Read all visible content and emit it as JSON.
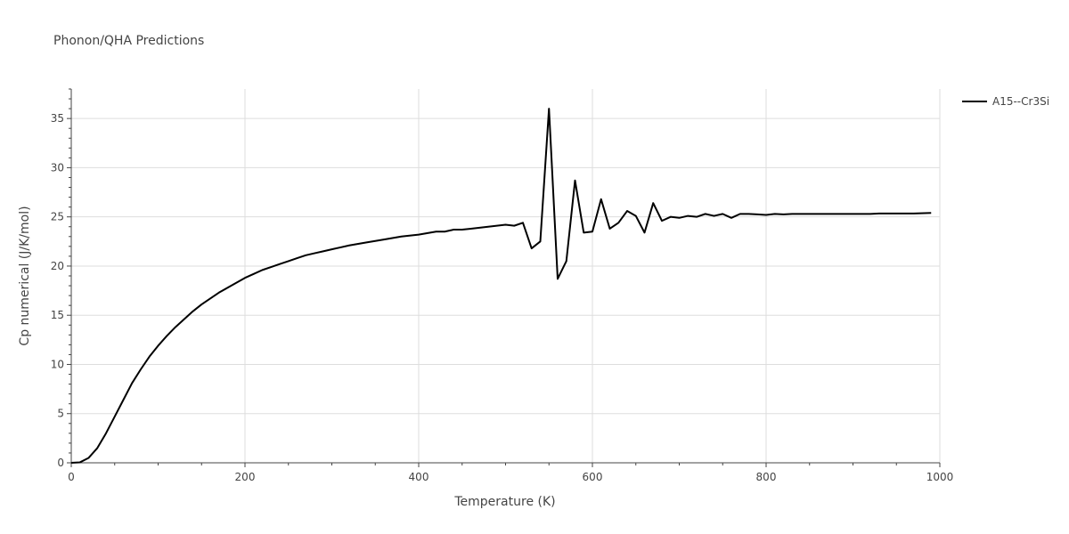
{
  "chart_data": {
    "type": "line",
    "title": "Phonon/QHA Predictions",
    "xlabel": "Temperature (K)",
    "ylabel": "Cp numerical (J/K/mol)",
    "xlim": [
      0,
      1000
    ],
    "ylim": [
      0,
      38
    ],
    "x_ticks": [
      0,
      200,
      400,
      600,
      800,
      1000
    ],
    "y_ticks": [
      0,
      5,
      10,
      15,
      20,
      25,
      30,
      35
    ],
    "grid": true,
    "legend_position": "top-right",
    "series": [
      {
        "name": "A15--Cr3Si",
        "color": "#000000",
        "x": [
          0,
          10,
          20,
          30,
          40,
          50,
          60,
          70,
          80,
          90,
          100,
          110,
          120,
          130,
          140,
          150,
          160,
          170,
          180,
          190,
          200,
          210,
          220,
          230,
          240,
          250,
          260,
          270,
          280,
          290,
          300,
          320,
          340,
          360,
          380,
          400,
          420,
          430,
          440,
          450,
          460,
          470,
          480,
          490,
          500,
          510,
          520,
          530,
          540,
          550,
          560,
          570,
          580,
          590,
          600,
          610,
          620,
          630,
          640,
          650,
          660,
          670,
          680,
          690,
          700,
          710,
          720,
          730,
          740,
          750,
          760,
          770,
          780,
          790,
          800,
          810,
          820,
          830,
          840,
          850,
          860,
          880,
          900,
          920,
          930,
          950,
          970,
          990
        ],
        "values": [
          0,
          0.05,
          0.5,
          1.5,
          3.0,
          4.7,
          6.4,
          8.1,
          9.5,
          10.8,
          11.9,
          12.9,
          13.8,
          14.6,
          15.4,
          16.1,
          16.7,
          17.3,
          17.8,
          18.3,
          18.8,
          19.2,
          19.6,
          19.9,
          20.2,
          20.5,
          20.8,
          21.1,
          21.3,
          21.5,
          21.7,
          22.1,
          22.4,
          22.7,
          23.0,
          23.2,
          23.5,
          23.5,
          23.7,
          23.7,
          23.8,
          23.9,
          24.0,
          24.1,
          24.2,
          24.1,
          24.4,
          21.8,
          22.5,
          36.0,
          18.7,
          20.5,
          28.7,
          23.4,
          23.5,
          26.8,
          23.8,
          24.4,
          25.6,
          25.1,
          23.4,
          26.4,
          24.6,
          25.0,
          24.9,
          25.1,
          25.0,
          25.3,
          25.1,
          25.3,
          24.9,
          25.3,
          25.3,
          25.25,
          25.2,
          25.3,
          25.25,
          25.3,
          25.3,
          25.3,
          25.3,
          25.3,
          25.3,
          25.3,
          25.35,
          25.35,
          25.35,
          25.4
        ]
      }
    ]
  }
}
